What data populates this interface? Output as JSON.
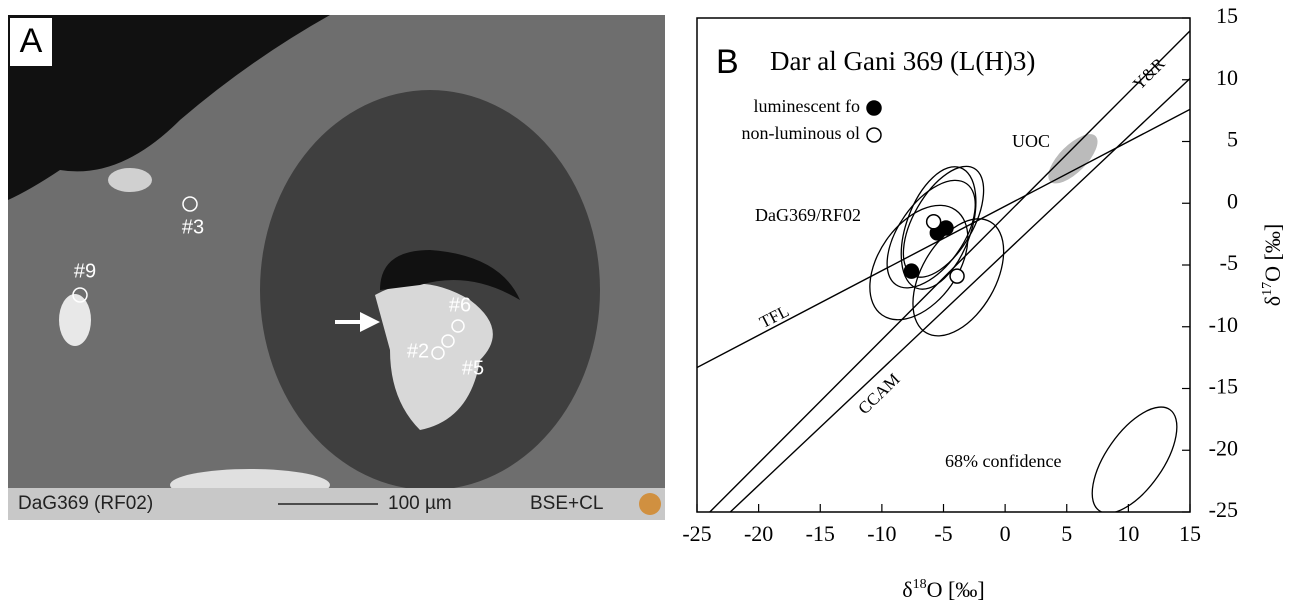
{
  "panel_a": {
    "label": "A",
    "spots": [
      "#3",
      "#9",
      "#6",
      "#2",
      "#5"
    ],
    "sample": "DaG369 (RF02)",
    "scale": "100 µm",
    "mode": "BSE+CL"
  },
  "chart_data": {
    "type": "scatter",
    "panel": "B",
    "title": "Dar al Gani 369 (L(H)3)",
    "x_label": [
      "δ",
      "18",
      "O [‰]"
    ],
    "y_label": [
      "δ",
      "17",
      "O [‰]"
    ],
    "xlim": [
      -25,
      15
    ],
    "ylim": [
      -25,
      15
    ],
    "xticks": [
      -25,
      -20,
      -15,
      -10,
      -5,
      0,
      5,
      10,
      15
    ],
    "yticks": [
      -25,
      -20,
      -15,
      -10,
      -5,
      0,
      5,
      10,
      15
    ],
    "legend": "upper left",
    "series": [
      {
        "name": "luminescent fo",
        "color": "#000000",
        "x": [
          -7.6,
          -5.5,
          -4.8
        ],
        "y": [
          -5.5,
          -2.4,
          -2.0
        ]
      },
      {
        "name": "non-luminous ol",
        "color": "#ffffff",
        "x": [
          -5.8,
          -3.9
        ],
        "y": [
          -1.5,
          -5.9
        ]
      }
    ],
    "lines": [
      {
        "name": "Y&R",
        "x": [
          -24,
          15
        ],
        "y": [
          -25.04,
          13.96
        ]
      },
      {
        "name": "CCAM",
        "x": [
          -22.3,
          15
        ],
        "y": [
          -25,
          10.1
        ]
      },
      {
        "name": "TFL",
        "x": [
          -25,
          15
        ],
        "y": [
          -13.3,
          7.6
        ]
      }
    ],
    "ellipses": [
      {
        "cx": 5.5,
        "cy": 3.6,
        "rx": 2.6,
        "ry": 1.1,
        "angle": 45,
        "fill": "#bbbbbb"
      },
      {
        "cx": -5.4,
        "cy": -2.0,
        "rx": 5.2,
        "ry": 2.6,
        "angle": 70,
        "fill": "none"
      },
      {
        "cx": -5.0,
        "cy": -1.5,
        "rx": 5.0,
        "ry": 2.4,
        "angle": 60,
        "fill": "none"
      },
      {
        "cx": -6.0,
        "cy": -2.5,
        "rx": 5.0,
        "ry": 2.6,
        "angle": 55,
        "fill": "none"
      },
      {
        "cx": -7.0,
        "cy": -4.8,
        "rx": 5.2,
        "ry": 3.2,
        "angle": 55,
        "fill": "none"
      },
      {
        "cx": -3.8,
        "cy": -6.0,
        "rx": 5.2,
        "ry": 3.0,
        "angle": 60,
        "fill": "none"
      },
      {
        "cx": 10.5,
        "cy": -20.8,
        "rx": 5.0,
        "ry": 2.3,
        "angle": 55,
        "fill": "none"
      }
    ],
    "annotations": [
      "UOC",
      "DaG369/RF02",
      "68% confidence"
    ]
  }
}
